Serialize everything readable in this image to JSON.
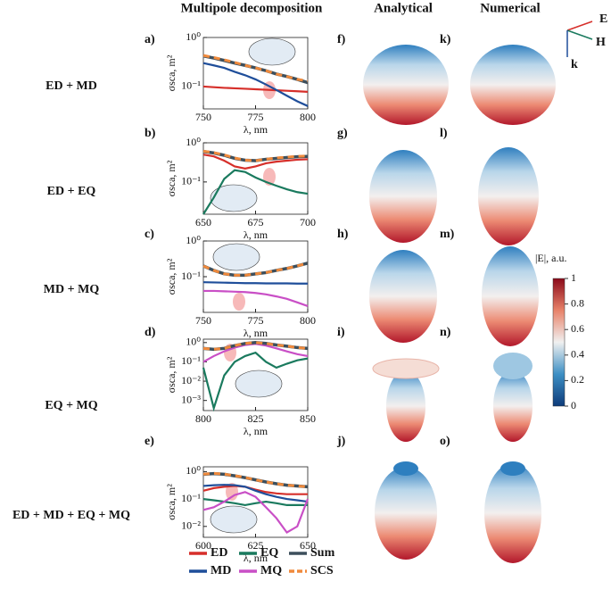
{
  "figure": {
    "header": [
      "Multipole decomposition",
      "Analytical",
      "Numerical"
    ],
    "rows": [
      "ED + MD",
      "ED + EQ",
      "MD + MQ",
      "EQ + MQ",
      "ED + MD + EQ + MQ"
    ],
    "panels": [
      "a)",
      "b)",
      "c)",
      "d)",
      "e)",
      "f)",
      "g)",
      "h)",
      "i)",
      "j)",
      "k)",
      "l)",
      "m)",
      "n)",
      "o)"
    ],
    "triad": [
      "E",
      "H",
      "k"
    ],
    "colorbar": {
      "label": "|E|, a.u.",
      "lim": [
        0,
        1
      ],
      "ticks": [
        0,
        0.2,
        0.4,
        0.6,
        0.8,
        1
      ]
    }
  },
  "chart_data": [
    {
      "type": "line",
      "log_y": true,
      "xlabel": "λ, nm",
      "ylabel": "σsca, m²",
      "x": [
        750,
        755,
        760,
        765,
        770,
        775,
        780,
        785,
        790,
        795,
        800
      ],
      "xlim": [
        750,
        800
      ],
      "xticks": [
        750,
        775,
        800
      ],
      "ylim": [
        0.035,
        1
      ],
      "yticks": [
        {
          "value": 1,
          "label": "10⁰"
        },
        {
          "value": 0.1,
          "label": "10⁻¹"
        }
      ],
      "series": [
        {
          "name": "ED",
          "color": "#d62f2a",
          "values": [
            0.1,
            0.097,
            0.094,
            0.092,
            0.09,
            0.088,
            0.086,
            0.084,
            0.082,
            0.08,
            0.078
          ]
        },
        {
          "name": "MD",
          "color": "#1f4e9a",
          "values": [
            0.3,
            0.27,
            0.24,
            0.2,
            0.17,
            0.14,
            0.11,
            0.085,
            0.065,
            0.05,
            0.04
          ]
        },
        {
          "name": "Sum",
          "color": "#3d4f5c",
          "values": [
            0.42,
            0.38,
            0.34,
            0.3,
            0.27,
            0.24,
            0.21,
            0.18,
            0.16,
            0.14,
            0.12
          ]
        },
        {
          "name": "SCS",
          "color": "#f08a3c",
          "values": [
            0.43,
            0.39,
            0.35,
            0.31,
            0.27,
            0.24,
            0.21,
            0.18,
            0.16,
            0.14,
            0.13
          ]
        }
      ]
    },
    {
      "type": "line",
      "log_y": true,
      "xlabel": "λ, nm",
      "ylabel": "σsca, m²",
      "x": [
        650,
        655,
        660,
        665,
        670,
        675,
        680,
        685,
        690,
        695,
        700
      ],
      "xlim": [
        650,
        700
      ],
      "xticks": [
        650,
        675,
        700
      ],
      "ylim": [
        0.015,
        1
      ],
      "yticks": [
        {
          "value": 1,
          "label": "10⁰"
        },
        {
          "value": 0.1,
          "label": "10⁻¹"
        }
      ],
      "series": [
        {
          "name": "ED",
          "color": "#d62f2a",
          "values": [
            0.5,
            0.45,
            0.35,
            0.25,
            0.22,
            0.25,
            0.3,
            0.33,
            0.35,
            0.37,
            0.38
          ]
        },
        {
          "name": "EQ",
          "color": "#1a7a5e",
          "values": [
            0.015,
            0.04,
            0.12,
            0.2,
            0.18,
            0.13,
            0.1,
            0.08,
            0.065,
            0.055,
            0.05
          ]
        },
        {
          "name": "Sum",
          "color": "#3d4f5c",
          "values": [
            0.6,
            0.55,
            0.48,
            0.4,
            0.36,
            0.35,
            0.38,
            0.4,
            0.42,
            0.44,
            0.45
          ]
        },
        {
          "name": "SCS",
          "color": "#f08a3c",
          "values": [
            0.61,
            0.56,
            0.49,
            0.41,
            0.36,
            0.35,
            0.38,
            0.41,
            0.43,
            0.45,
            0.46
          ]
        }
      ]
    },
    {
      "type": "line",
      "log_y": true,
      "xlabel": "λ, nm",
      "ylabel": "σsca, m²",
      "x": [
        750,
        755,
        760,
        765,
        770,
        775,
        780,
        785,
        790,
        795,
        800
      ],
      "xlim": [
        750,
        800
      ],
      "xticks": [
        750,
        775,
        800
      ],
      "ylim": [
        0.01,
        1
      ],
      "yticks": [
        {
          "value": 1,
          "label": "10⁰"
        },
        {
          "value": 0.1,
          "label": "10⁻¹"
        }
      ],
      "series": [
        {
          "name": "MD",
          "color": "#1f4e9a",
          "values": [
            0.07,
            0.069,
            0.068,
            0.067,
            0.066,
            0.066,
            0.065,
            0.065,
            0.065,
            0.064,
            0.064
          ]
        },
        {
          "name": "MQ",
          "color": "#c94fc6",
          "values": [
            0.04,
            0.04,
            0.039,
            0.038,
            0.037,
            0.035,
            0.032,
            0.028,
            0.024,
            0.019,
            0.015
          ]
        },
        {
          "name": "Sum",
          "color": "#3d4f5c",
          "values": [
            0.2,
            0.15,
            0.12,
            0.11,
            0.11,
            0.12,
            0.13,
            0.15,
            0.17,
            0.2,
            0.24
          ]
        },
        {
          "name": "SCS",
          "color": "#f08a3c",
          "values": [
            0.2,
            0.15,
            0.12,
            0.11,
            0.11,
            0.12,
            0.13,
            0.15,
            0.17,
            0.2,
            0.24
          ]
        }
      ]
    },
    {
      "type": "line",
      "log_y": true,
      "xlabel": "λ, nm",
      "ylabel": "σsca, m²",
      "x": [
        800,
        805,
        810,
        815,
        820,
        825,
        830,
        835,
        840,
        845,
        850
      ],
      "xlim": [
        800,
        850
      ],
      "xticks": [
        800,
        825,
        850
      ],
      "ylim": [
        0.0003,
        1.5
      ],
      "yticks": [
        {
          "value": 1,
          "label": "10⁰"
        },
        {
          "value": 0.1,
          "label": "10⁻¹"
        },
        {
          "value": 0.01,
          "label": "10⁻²"
        },
        {
          "value": 0.001,
          "label": "10⁻³"
        }
      ],
      "series": [
        {
          "name": "EQ",
          "color": "#1a7a5e",
          "values": [
            0.05,
            0.0004,
            0.02,
            0.1,
            0.2,
            0.3,
            0.1,
            0.05,
            0.08,
            0.12,
            0.15
          ]
        },
        {
          "name": "MQ",
          "color": "#c94fc6",
          "values": [
            0.1,
            0.2,
            0.35,
            0.55,
            0.75,
            0.85,
            0.7,
            0.5,
            0.35,
            0.25,
            0.2
          ]
        },
        {
          "name": "Sum",
          "color": "#3d4f5c",
          "values": [
            0.5,
            0.45,
            0.5,
            0.7,
            0.9,
            1,
            0.9,
            0.75,
            0.65,
            0.55,
            0.5
          ]
        },
        {
          "name": "SCS",
          "color": "#f08a3c",
          "values": [
            0.5,
            0.45,
            0.5,
            0.7,
            0.9,
            1,
            0.9,
            0.75,
            0.65,
            0.55,
            0.5
          ]
        }
      ]
    },
    {
      "type": "line",
      "log_y": true,
      "xlabel": "λ, nm",
      "ylabel": "σsca, m²",
      "x": [
        600,
        605,
        610,
        615,
        620,
        625,
        630,
        635,
        640,
        645,
        650
      ],
      "xlim": [
        600,
        650
      ],
      "xticks": [
        600,
        625,
        650
      ],
      "ylim": [
        0.004,
        1.5
      ],
      "yticks": [
        {
          "value": 1,
          "label": "10⁰"
        },
        {
          "value": 0.1,
          "label": "10⁻¹"
        },
        {
          "value": 0.01,
          "label": "10⁻²"
        }
      ],
      "series": [
        {
          "name": "ED",
          "color": "#d62f2a",
          "values": [
            0.2,
            0.25,
            0.28,
            0.3,
            0.28,
            0.22,
            0.18,
            0.16,
            0.15,
            0.15,
            0.15
          ]
        },
        {
          "name": "MD",
          "color": "#1f4e9a",
          "values": [
            0.3,
            0.32,
            0.33,
            0.32,
            0.28,
            0.2,
            0.15,
            0.12,
            0.1,
            0.09,
            0.08
          ]
        },
        {
          "name": "EQ",
          "color": "#1a7a5e",
          "values": [
            0.1,
            0.09,
            0.08,
            0.07,
            0.06,
            0.07,
            0.08,
            0.07,
            0.06,
            0.06,
            0.06
          ]
        },
        {
          "name": "MQ",
          "color": "#c94fc6",
          "values": [
            0.04,
            0.05,
            0.08,
            0.14,
            0.18,
            0.12,
            0.05,
            0.02,
            0.006,
            0.01,
            0.1
          ]
        },
        {
          "name": "Sum",
          "color": "#3d4f5c",
          "values": [
            0.8,
            0.85,
            0.8,
            0.7,
            0.6,
            0.5,
            0.42,
            0.36,
            0.32,
            0.3,
            0.28
          ]
        },
        {
          "name": "SCS",
          "color": "#f08a3c",
          "values": [
            0.81,
            0.86,
            0.81,
            0.71,
            0.61,
            0.5,
            0.42,
            0.36,
            0.32,
            0.3,
            0.28
          ]
        }
      ]
    }
  ]
}
